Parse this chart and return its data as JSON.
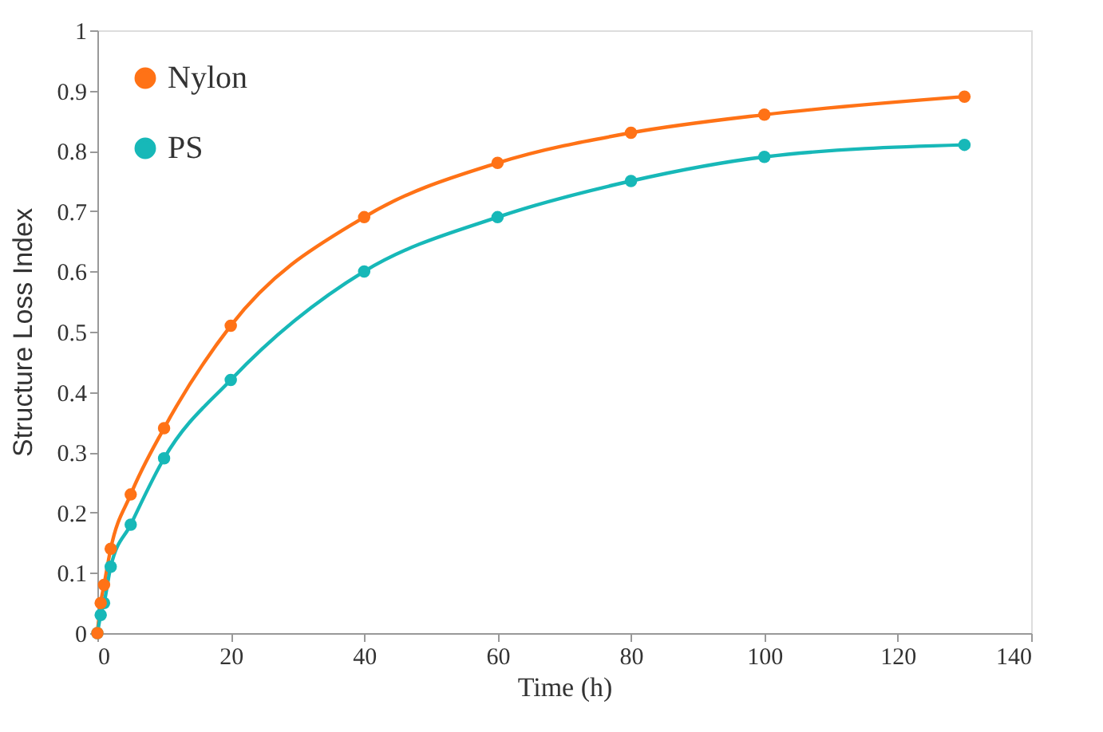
{
  "chart_data": {
    "type": "line",
    "xlabel": "Time (h)",
    "ylabel": "Structure Loss Index",
    "x": [
      0,
      0.5,
      1,
      2,
      5,
      10,
      20,
      40,
      60,
      80,
      100,
      130
    ],
    "series": [
      {
        "name": "Nylon",
        "color": "#ff7216",
        "values": [
          0,
          0.05,
          0.08,
          0.14,
          0.23,
          0.34,
          0.51,
          0.69,
          0.78,
          0.83,
          0.86,
          0.89
        ]
      },
      {
        "name": "PS",
        "color": "#17b8b8",
        "values": [
          0,
          0.03,
          0.05,
          0.11,
          0.18,
          0.29,
          0.42,
          0.6,
          0.69,
          0.75,
          0.79,
          0.81
        ]
      }
    ],
    "xlim": [
      0,
      140
    ],
    "xticks": [
      0,
      20,
      40,
      60,
      80,
      100,
      120,
      140
    ],
    "ylim": [
      0,
      1
    ],
    "yticks": [
      0,
      0.1,
      0.2,
      0.3,
      0.4,
      0.5,
      0.6,
      0.7,
      0.8,
      0.9,
      1
    ],
    "marker": "circle",
    "line_style": "solid",
    "legend": "top left",
    "grid": false
  }
}
